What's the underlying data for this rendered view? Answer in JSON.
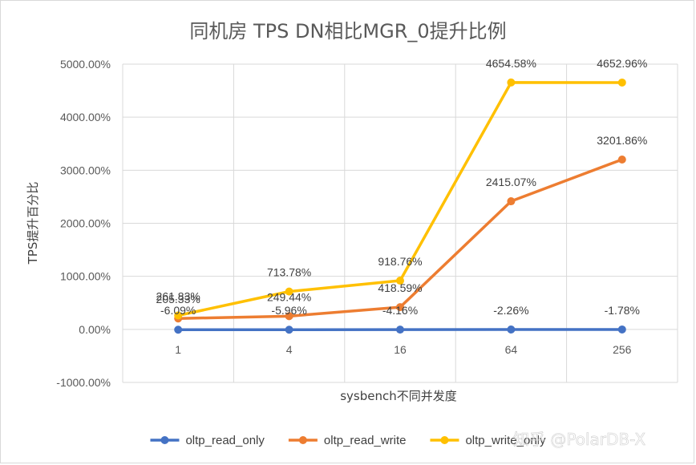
{
  "chart_data": {
    "type": "line",
    "title": "同机房 TPS DN相比MGR_0提升比例",
    "xlabel": "sysbench不同并发度",
    "ylabel": "TPS提升百分比",
    "categories": [
      "1",
      "4",
      "16",
      "64",
      "256"
    ],
    "ylim": [
      -1000,
      5000
    ],
    "yticks": [
      -1000,
      0,
      1000,
      2000,
      3000,
      4000,
      5000
    ],
    "ytick_labels": [
      "-1000.00%",
      "0.00%",
      "1000.00%",
      "2000.00%",
      "3000.00%",
      "4000.00%",
      "5000.00%"
    ],
    "grid": "major gridlines on both axes",
    "legend_position": "bottom",
    "series": [
      {
        "name": "oltp_read_only",
        "color": "#4472C4",
        "values": [
          -6.09,
          -5.96,
          -4.16,
          -2.26,
          -1.78
        ],
        "labels": [
          "-6.09%",
          "-5.96%",
          "-4.16%",
          "-2.26%",
          "-1.78%"
        ]
      },
      {
        "name": "oltp_read_write",
        "color": "#ED7D31",
        "values": [
          205.33,
          249.44,
          418.59,
          2415.07,
          3201.86
        ],
        "labels": [
          "205.33%",
          "249.44%",
          "418.59%",
          "2415.07%",
          "3201.86%"
        ]
      },
      {
        "name": "oltp_write_only",
        "color": "#FFC000",
        "values": [
          261.83,
          713.78,
          918.76,
          4654.58,
          4652.96
        ],
        "labels": [
          "261.83%",
          "713.78%",
          "918.76%",
          "4654.58%",
          "4652.96%"
        ]
      }
    ]
  },
  "watermark": "知乎 @PolarDB-X"
}
